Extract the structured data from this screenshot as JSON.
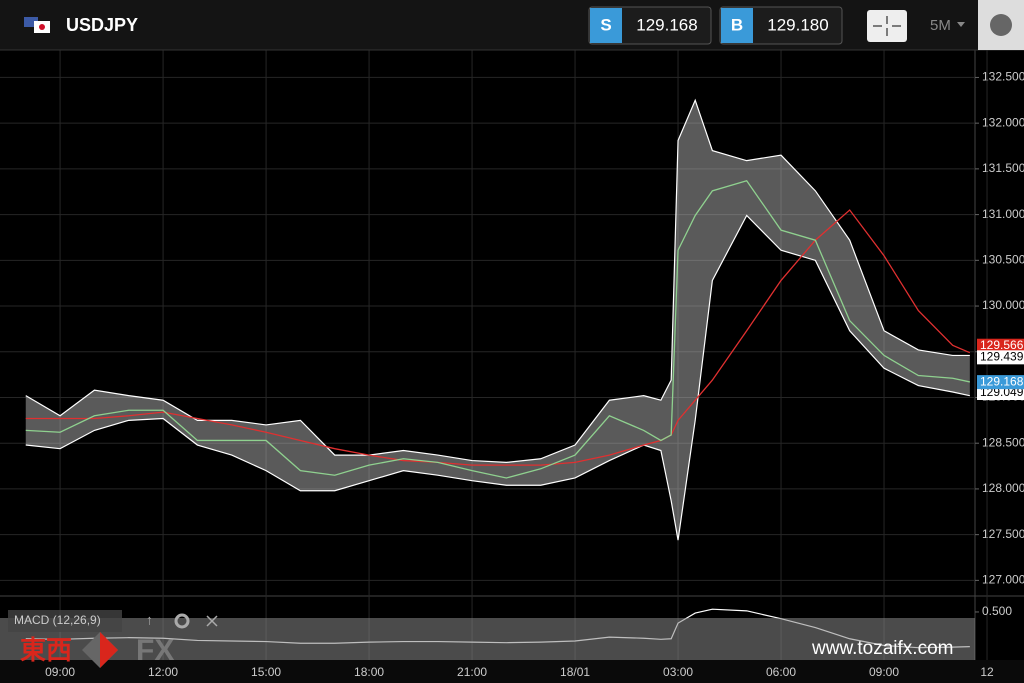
{
  "header": {
    "symbol": "USDJPY",
    "sell_label": "S",
    "sell": "129.168",
    "buy_label": "B",
    "buy": "129.180",
    "timeframe": "5M"
  },
  "watermark": {
    "brand": "東西",
    "fx": "FX",
    "url": "www.tozaifx.com"
  },
  "chart_data": {
    "type": "line",
    "x": [
      8,
      9,
      10,
      11,
      12,
      13,
      14,
      15,
      16,
      17,
      18,
      19,
      20,
      21,
      22,
      23,
      24,
      25,
      26,
      26.5,
      26.8,
      27,
      27.5,
      28,
      29,
      30,
      31,
      32,
      33,
      34,
      35,
      35.5
    ],
    "series": [
      {
        "color": "#ffffff",
        "role": "upper",
        "values": [
          129.02,
          128.8,
          129.08,
          129.02,
          128.97,
          128.75,
          128.75,
          128.7,
          128.75,
          128.37,
          128.37,
          128.42,
          128.37,
          128.31,
          128.29,
          128.33,
          128.48,
          128.97,
          129.02,
          128.97,
          129.19,
          131.81,
          132.25,
          131.7,
          131.59,
          131.65,
          131.26,
          130.72,
          129.73,
          129.52,
          129.46,
          129.46
        ]
      },
      {
        "color": "#ffffff",
        "role": "lower",
        "values": [
          128.48,
          128.44,
          128.64,
          128.75,
          128.77,
          128.48,
          128.37,
          128.2,
          127.98,
          127.98,
          128.09,
          128.2,
          128.15,
          128.09,
          128.04,
          128.04,
          128.12,
          128.31,
          128.48,
          128.42,
          127.87,
          127.44,
          128.75,
          130.28,
          130.99,
          130.61,
          130.5,
          129.73,
          129.32,
          129.13,
          129.06,
          129.02
        ]
      },
      {
        "color": "#e03030",
        "role": "line",
        "values": [
          128.77,
          128.77,
          128.77,
          128.8,
          128.84,
          128.77,
          128.7,
          128.62,
          128.53,
          128.44,
          128.37,
          128.31,
          128.29,
          128.26,
          128.26,
          128.26,
          128.29,
          128.37,
          128.48,
          128.53,
          128.59,
          128.75,
          128.97,
          129.19,
          129.73,
          130.28,
          130.72,
          131.05,
          130.55,
          129.95,
          129.57,
          129.49
        ]
      },
      {
        "color": "#8fd18f",
        "role": "line",
        "values": [
          128.64,
          128.62,
          128.8,
          128.86,
          128.86,
          128.53,
          128.53,
          128.53,
          128.2,
          128.15,
          128.26,
          128.33,
          128.29,
          128.2,
          128.12,
          128.22,
          128.37,
          128.8,
          128.64,
          128.53,
          128.59,
          130.61,
          130.99,
          131.26,
          131.37,
          130.83,
          130.72,
          129.84,
          129.46,
          129.24,
          129.21,
          129.17
        ]
      }
    ],
    "band_color": "#c8c8c8",
    "xlim": [
      7.25,
      35.65
    ],
    "xticks": [
      {
        "value": 9,
        "label": "09:00"
      },
      {
        "value": 12,
        "label": "12:00"
      },
      {
        "value": 15,
        "label": "15:00"
      },
      {
        "value": 18,
        "label": "18:00"
      },
      {
        "value": 21,
        "label": "21:00"
      },
      {
        "value": 24,
        "label": "18/01"
      },
      {
        "value": 27,
        "label": "03:00"
      },
      {
        "value": 30,
        "label": "06:00"
      },
      {
        "value": 33,
        "label": "09:00"
      },
      {
        "value": 36,
        "label": "12"
      }
    ],
    "ylim": [
      126.84,
      132.8
    ],
    "yticks": [
      {
        "value": 127,
        "label": "127.000"
      },
      {
        "value": 127.5,
        "label": "127.500"
      },
      {
        "value": 128,
        "label": "128.000"
      },
      {
        "value": 128.5,
        "label": "128.500"
      },
      {
        "value": 129,
        "label": "129.000"
      },
      {
        "value": 129.5,
        "label": "129.500"
      },
      {
        "value": 130,
        "label": "130.000"
      },
      {
        "value": 130.5,
        "label": "130.500"
      },
      {
        "value": 131,
        "label": "131.000"
      },
      {
        "value": 131.5,
        "label": "131.500"
      },
      {
        "value": 132,
        "label": "132.000"
      },
      {
        "value": 132.5,
        "label": "132.500"
      }
    ],
    "grid": true,
    "price_tags": [
      {
        "value": 129.566,
        "color": "#d9261c"
      },
      {
        "value": 129.439,
        "color": "#ffffff"
      },
      {
        "value": 129.049,
        "color": "#ffffff"
      },
      {
        "value": 129.168,
        "color": "#3a9ad9"
      }
    ],
    "macd": {
      "label": "MACD (12,26,9)",
      "color": "#ffffff",
      "values": [
        0.02,
        0.01,
        0.03,
        0.04,
        0.03,
        -0.01,
        -0.02,
        -0.03,
        -0.06,
        -0.06,
        -0.04,
        -0.03,
        -0.03,
        -0.04,
        -0.05,
        -0.04,
        -0.02,
        0.05,
        0.03,
        0.01,
        0.02,
        0.3,
        0.48,
        0.55,
        0.52,
        0.38,
        0.22,
        0.02,
        -0.1,
        -0.14,
        -0.13,
        -0.12
      ],
      "ylim": [
        -0.36,
        0.75
      ],
      "yticks": [
        {
          "value": 0.5,
          "label": "0.500"
        }
      ]
    }
  }
}
